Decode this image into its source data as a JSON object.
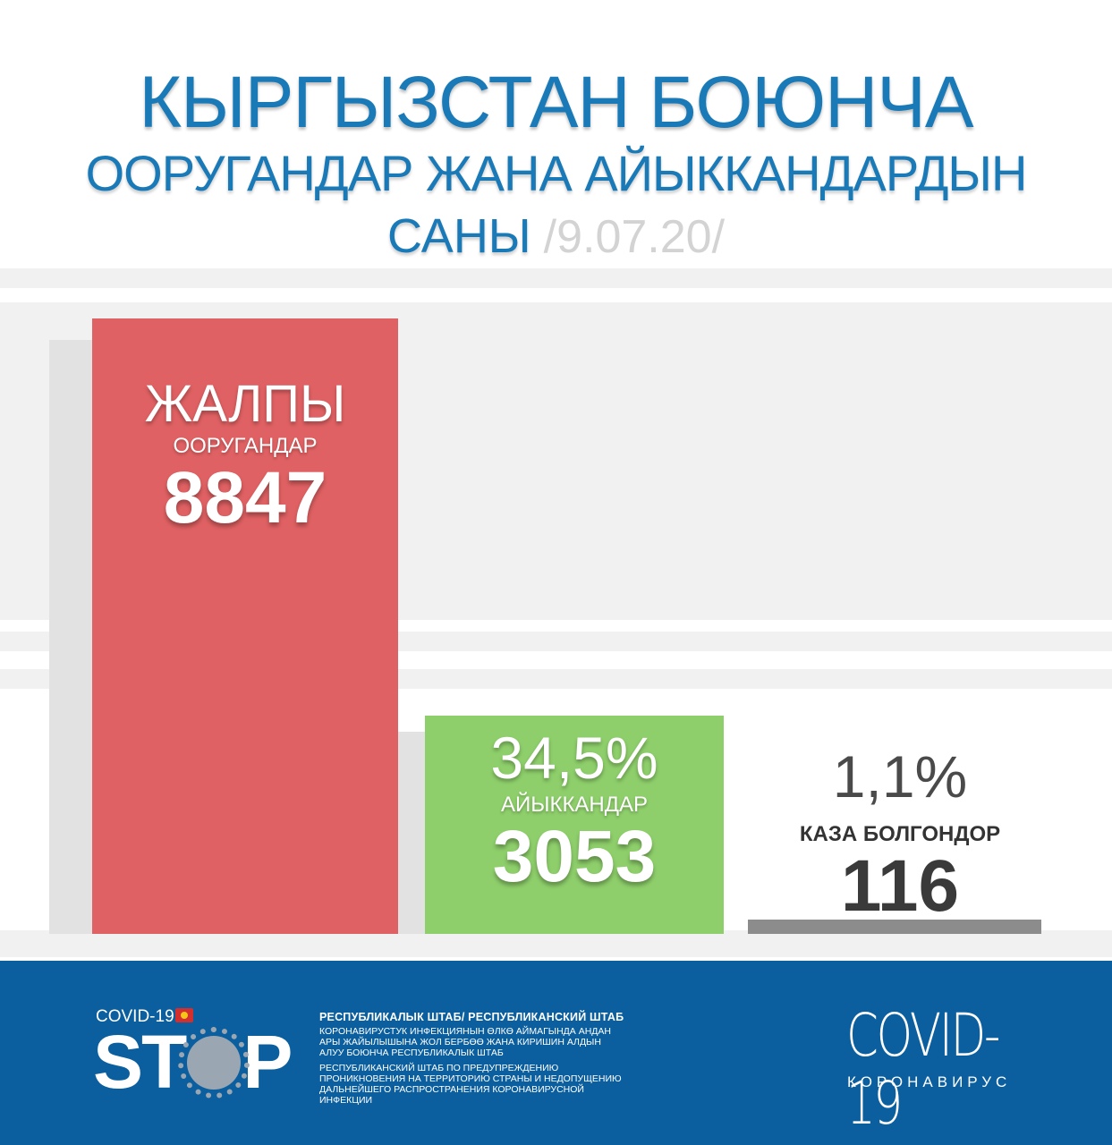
{
  "title": {
    "line1": "КЫРГЫЗСТАН БОЮНЧА",
    "line2": "ООРУГАНДАР ЖАНА АЙЫККАНДАРДЫН",
    "line3_word": "САНЫ",
    "line3_date": "/9.07.20/"
  },
  "chart_data": {
    "type": "bar",
    "categories": [
      "ЖАЛПЫ ООРУГАНДАР",
      "АЙЫККАНДАР",
      "КАЗА БОЛГОНДОР"
    ],
    "values": [
      8847,
      3053,
      116
    ],
    "percents": [
      "",
      "34,5%",
      "1,1%"
    ],
    "ylim": [
      0,
      8847
    ],
    "colors": [
      "#e06163",
      "#8ecf6b",
      "#8c8c8c"
    ],
    "bars": [
      {
        "top_label": "ЖАЛПЫ",
        "sub_label": "ООРУГАНДАР",
        "value": "8847"
      },
      {
        "percent": "34,5%",
        "sub_label": "АЙЫККАНДАР",
        "value": "3053"
      },
      {
        "percent": "1,1%",
        "sub_label": "КАЗА БОЛГОНДОР",
        "value": "116"
      }
    ]
  },
  "footer": {
    "covid_small": "COVID-19",
    "stop": "ST",
    "stop_p": "P",
    "headquarters": "РЕСПУБЛИКАЛЫК ШТАБ/ РЕСПУБЛИКАНСКИЙ ШТАБ",
    "desc_ky": "КОРОНАВИРУСТУК ИНФЕКЦИЯНЫН ӨЛКӨ АЙМАГЫНДА АНДАН АРЫ ЖАЙЫЛЫШЫНА ЖОЛ БЕРБӨӨ ЖАНА КИРИШИН АЛДЫН АЛУУ БОЮНЧА РЕСПУБЛИКАЛЫК ШТАБ",
    "desc_ru": "РЕСПУБЛИКАНСКИЙ ШТАБ ПО ПРЕДУПРЕЖДЕНИЮ ПРОНИКНОВЕНИЯ НА ТЕРРИТОРИЮ СТРАНЫ И НЕДОПУЩЕНИЮ ДАЛЬНЕЙШЕГО РАСПРОСТРАНЕНИЯ КОРОНАВИРУСНОЙ ИНФЕКЦИИ",
    "covid_big": "COVID-19",
    "coronavirus": "КОРОНАВИРУС",
    "colors": {
      "footer_bg": "#0b5f9e",
      "title": "#1a7ab8"
    }
  }
}
